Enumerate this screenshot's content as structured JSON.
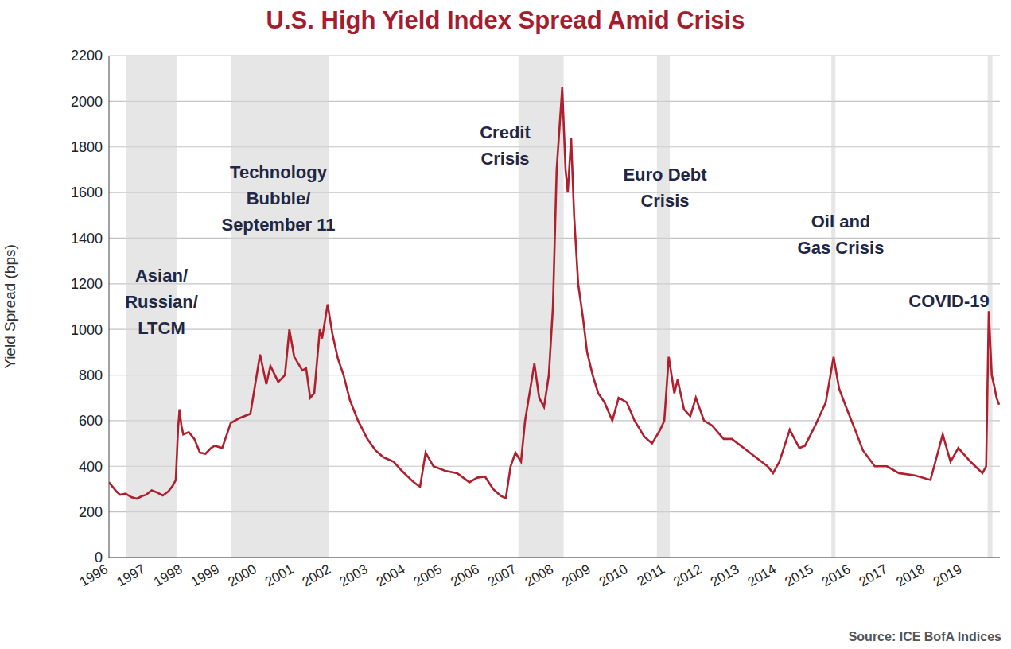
{
  "chart_data": {
    "type": "line",
    "title": "U.S. High Yield Index Spread Amid Crisis",
    "y_label": "Yield Spread (bps)",
    "source": "Source: ICE BofA Indices",
    "color": "#b01f2e",
    "grid": true,
    "xlim": [
      1996,
      2020
    ],
    "xticks": [
      1996,
      1997,
      1998,
      1999,
      2000,
      2001,
      2002,
      2003,
      2004,
      2005,
      2006,
      2007,
      2008,
      2009,
      2010,
      2011,
      2012,
      2013,
      2014,
      2015,
      2016,
      2017,
      2018,
      2019
    ],
    "ylim": [
      0,
      2200
    ],
    "yticks": [
      0,
      200,
      400,
      600,
      800,
      1000,
      1200,
      1400,
      1600,
      1800,
      2000,
      2200
    ],
    "x": [
      1996.0,
      1996.1,
      1996.2,
      1996.3,
      1996.45,
      1996.6,
      1996.75,
      1996.9,
      1997.0,
      1997.15,
      1997.3,
      1997.45,
      1997.6,
      1997.72,
      1997.8,
      1997.86,
      1997.9,
      1997.95,
      1998.0,
      1998.15,
      1998.3,
      1998.45,
      1998.6,
      1998.75,
      1998.85,
      1999.05,
      1999.28,
      1999.5,
      1999.81,
      2000.07,
      2000.24,
      2000.35,
      2000.56,
      2000.74,
      2000.86,
      2000.99,
      2001.21,
      2001.31,
      2001.42,
      2001.53,
      2001.68,
      2001.74,
      2001.89,
      2002.02,
      2002.17,
      2002.32,
      2002.49,
      2002.71,
      2002.96,
      2003.18,
      2003.39,
      2003.67,
      2003.89,
      2004.21,
      2004.38,
      2004.53,
      2004.74,
      2005.06,
      2005.38,
      2005.71,
      2005.92,
      2006.13,
      2006.35,
      2006.56,
      2006.69,
      2006.82,
      2006.95,
      2007.1,
      2007.21,
      2007.31,
      2007.46,
      2007.59,
      2007.72,
      2007.85,
      2007.96,
      2008.06,
      2008.21,
      2008.3,
      2008.36,
      2008.45,
      2008.53,
      2008.64,
      2008.77,
      2008.88,
      2009.03,
      2009.18,
      2009.35,
      2009.56,
      2009.73,
      2009.95,
      2010.16,
      2010.42,
      2010.63,
      2010.85,
      2010.96,
      2011.08,
      2011.23,
      2011.32,
      2011.49,
      2011.66,
      2011.81,
      2012.03,
      2012.24,
      2012.56,
      2012.78,
      2013.1,
      2013.42,
      2013.74,
      2013.89,
      2014.06,
      2014.34,
      2014.6,
      2014.75,
      2015.03,
      2015.31,
      2015.52,
      2015.67,
      2015.88,
      2016.1,
      2016.31,
      2016.63,
      2016.96,
      2017.28,
      2017.71,
      2018.13,
      2018.46,
      2018.67,
      2018.88,
      2019.21,
      2019.53,
      2019.63,
      2019.7,
      2019.78,
      2019.85,
      2019.91,
      2019.98
    ],
    "values": [
      330,
      310,
      290,
      275,
      280,
      265,
      258,
      270,
      275,
      295,
      285,
      272,
      290,
      315,
      340,
      560,
      650,
      580,
      540,
      550,
      520,
      460,
      455,
      480,
      490,
      480,
      590,
      610,
      630,
      890,
      760,
      840,
      770,
      800,
      1000,
      880,
      820,
      830,
      700,
      720,
      1000,
      960,
      1110,
      980,
      870,
      800,
      690,
      600,
      520,
      470,
      440,
      420,
      380,
      330,
      310,
      460,
      400,
      380,
      370,
      330,
      350,
      355,
      300,
      270,
      260,
      400,
      460,
      420,
      600,
      700,
      850,
      700,
      660,
      800,
      1100,
      1700,
      2060,
      1700,
      1600,
      1840,
      1500,
      1200,
      1050,
      900,
      800,
      720,
      680,
      600,
      700,
      680,
      600,
      530,
      500,
      560,
      600,
      880,
      720,
      780,
      650,
      620,
      700,
      600,
      580,
      520,
      520,
      480,
      440,
      400,
      370,
      420,
      560,
      480,
      490,
      580,
      680,
      880,
      740,
      650,
      560,
      470,
      400,
      400,
      370,
      360,
      340,
      540,
      420,
      480,
      420,
      370,
      400,
      1080,
      800,
      750,
      700,
      670
    ],
    "crisis_periods": [
      {
        "text": [
          "Asian/",
          "Russian/",
          "LTCM"
        ],
        "start": 1996.45,
        "end": 1997.82
      },
      {
        "text": [
          "Technology",
          "Bubble/",
          "September 11"
        ],
        "start": 1999.28,
        "end": 2001.92
      },
      {
        "text": [
          "Credit",
          "Crisis"
        ],
        "start": 2007.03,
        "end": 2008.25
      },
      {
        "text": [
          "Euro Debt",
          "Crisis"
        ],
        "start": 2010.76,
        "end": 2011.11
      },
      {
        "text": [
          "Oil and",
          "Gas Crisis"
        ],
        "start": 2015.46,
        "end": 2015.57
      },
      {
        "text": [
          "COVID-19"
        ],
        "start": 2019.67,
        "end": 2019.8
      }
    ]
  }
}
